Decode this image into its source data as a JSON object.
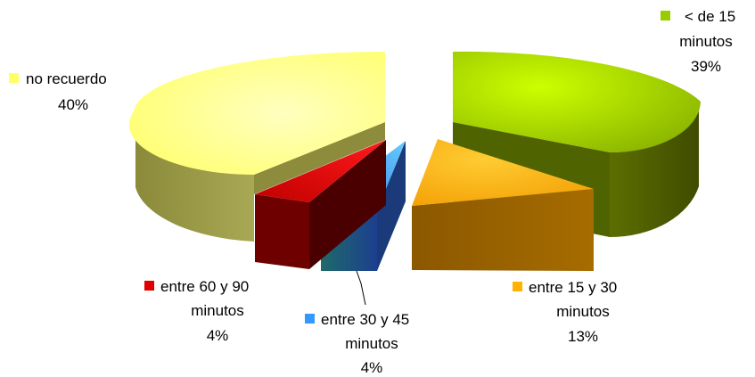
{
  "chart_data": {
    "type": "pie",
    "style": "3d-exploded",
    "legend": "none",
    "slices": [
      {
        "label_lines": [
          "<  de 15",
          "minutos"
        ],
        "value": 39,
        "value_label": "39%",
        "color": "#99CC00"
      },
      {
        "label_lines": [
          "entre 15 y 30",
          "minutos"
        ],
        "value": 13,
        "value_label": "13%",
        "color": "#FFB300"
      },
      {
        "label_lines": [
          "entre 30 y 45",
          "minutos"
        ],
        "value": 4,
        "value_label": "4%",
        "color": "#3399FF"
      },
      {
        "label_lines": [
          "entre 60 y 90",
          "minutos"
        ],
        "value": 4,
        "value_label": "4%",
        "color": "#E00000"
      },
      {
        "label_lines": [
          "no recuerdo"
        ],
        "value": 40,
        "value_label": "40%",
        "color": "#FFFF66"
      }
    ]
  }
}
